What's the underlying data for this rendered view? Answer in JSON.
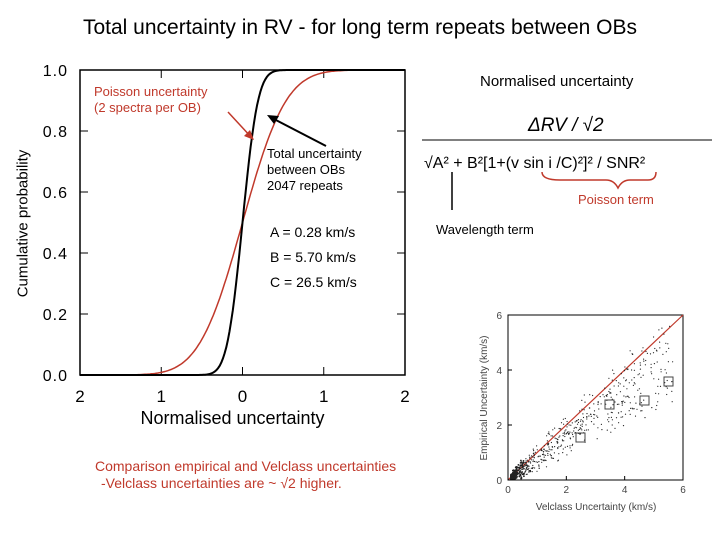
{
  "title": "Total uncertainty in RV - for long term repeats between OBs",
  "chart_data": {
    "type": "line",
    "title": "Total uncertainty in RV - for long term repeats between OBs",
    "xlabel": "Normalised uncertainty",
    "ylabel": "Cumulative probability",
    "xlim": [
      -2,
      2
    ],
    "ylim": [
      0,
      1
    ],
    "x_ticks": [
      "2",
      "1",
      "0",
      "1",
      "2"
    ],
    "y_ticks": [
      "0.0",
      "0.2",
      "0.4",
      "0.6",
      "0.8",
      "1.0"
    ],
    "series": [
      {
        "name": "Poisson uncertainty (2 spectra per OB)",
        "color": "#c0392b",
        "sigma": 0.42
      },
      {
        "name": "Total uncertainty between OBs",
        "color": "#000000",
        "sigma": 0.15
      }
    ]
  },
  "annotations": {
    "poisson_line1": "Poisson uncertainty",
    "poisson_line2": "(2 spectra per OB)",
    "total_line1": "Total uncertainty",
    "total_line2": "between OBs",
    "total_line3": "2047 repeats",
    "param_a": "A = 0.28 km/s",
    "param_b": "B = 5.70 km/s",
    "param_c": "C = 26.5 km/s"
  },
  "formula": {
    "heading": "Normalised uncertainty",
    "numerator": "ΔRV / √2",
    "denominator": "√A² + B²[1+(v sin i /C)²]² / SNR²",
    "poisson_term": "Poisson term",
    "wavelength_term": "Wavelength term"
  },
  "inset": {
    "xlabel": "Velclass Uncertainty (km/s)",
    "ylabel": "Empirical Uncertainty (km/s)",
    "x_ticks": [
      "0",
      "2",
      "4",
      "6"
    ],
    "y_ticks": [
      "0",
      "2",
      "4",
      "6"
    ]
  },
  "comparison": {
    "line1": "Comparison empirical and Velclass uncertainties",
    "line2": "-Velclass uncertainties are ~ √2 higher."
  }
}
